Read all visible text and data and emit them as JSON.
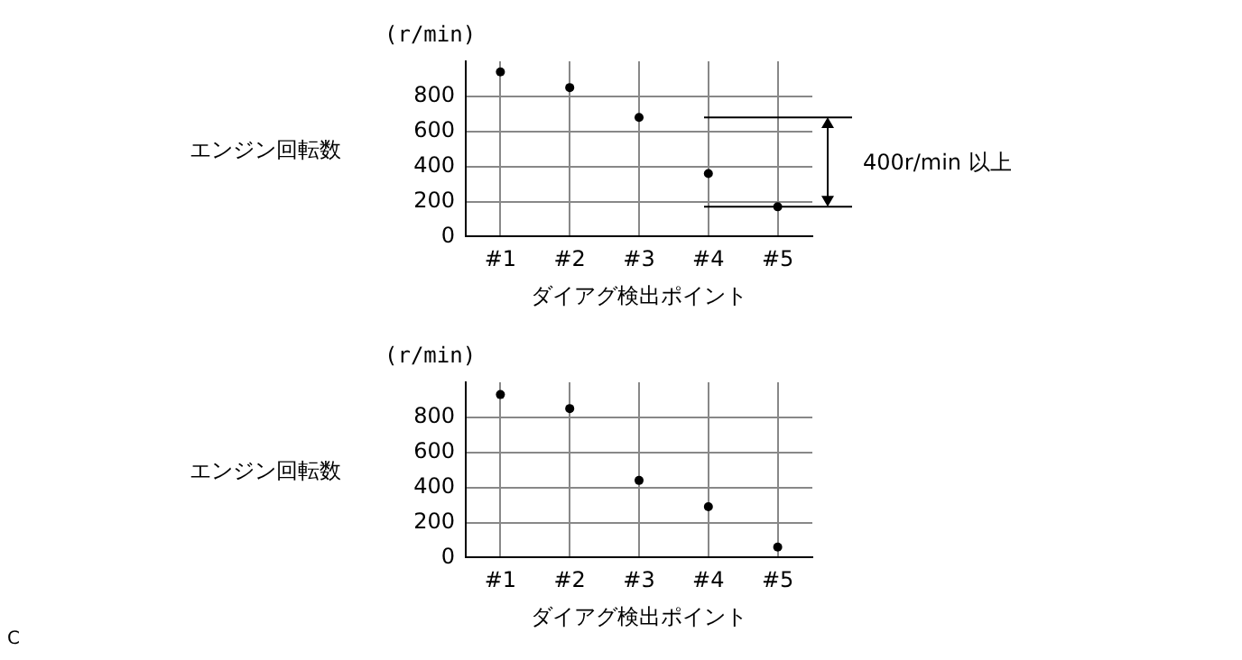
{
  "chart_data": [
    {
      "type": "scatter",
      "ylabel": "エンジン回転数",
      "xlabel": "ダイアグ検出ポイント",
      "categories": [
        "#1",
        "#2",
        "#3",
        "#4",
        "#5"
      ],
      "series": [
        {
          "color": "#000000",
          "values": [
            940,
            850,
            680,
            360,
            170
          ]
        }
      ],
      "ylim": [
        0,
        1000
      ],
      "yticks": [
        0,
        200,
        400,
        600,
        800
      ],
      "grid": true,
      "legend": false,
      "marker": "circle",
      "ref_lines": [
        {
          "axis": "y",
          "value": 680,
          "color": "#000000"
        },
        {
          "axis": "y",
          "value": 170,
          "color": "#000000"
        }
      ],
      "annotations": [
        "(r/min)",
        "400r/min 以上"
      ]
    },
    {
      "type": "scatter",
      "ylabel": "エンジン回転数",
      "xlabel": "ダイアグ検出ポイント",
      "categories": [
        "#1",
        "#2",
        "#3",
        "#4",
        "#5"
      ],
      "series": [
        {
          "color": "#000000",
          "values": [
            930,
            850,
            440,
            290,
            60
          ]
        }
      ],
      "ylim": [
        0,
        1000
      ],
      "yticks": [
        0,
        200,
        400,
        600,
        800
      ],
      "grid": true,
      "legend": false,
      "marker": "circle",
      "annotations": [
        "(r/min)",
        "C"
      ]
    }
  ]
}
